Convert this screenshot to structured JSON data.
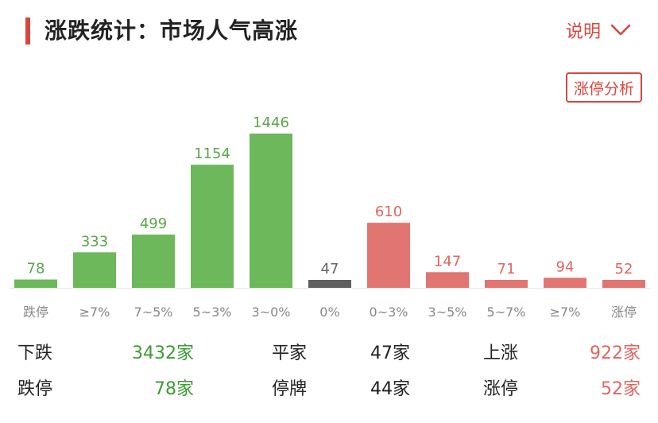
{
  "header": {
    "title": "涨跌统计：市场人气高涨",
    "explain_label": "说明",
    "explain_icon": "chevron-down-icon"
  },
  "limit_button_label": "涨停分析",
  "colors": {
    "down": "#6cb85a",
    "flat": "#5f5f5f",
    "up": "#e07572",
    "down_text": "#5aa84a",
    "flat_text": "#666666",
    "up_text": "#e0665f",
    "tick_text": "#888888"
  },
  "chart_data": {
    "type": "bar",
    "categories": [
      "跌停",
      "≥7%",
      "7~5%",
      "5~3%",
      "3~0%",
      "0%",
      "0~3%",
      "3~5%",
      "5~7%",
      "≥7%",
      "涨停"
    ],
    "values": [
      78,
      333,
      499,
      1154,
      1446,
      47,
      610,
      147,
      71,
      94,
      52
    ],
    "value_labels": [
      "78",
      "333",
      "499",
      "1154",
      "1446",
      "47",
      "610",
      "147",
      "71",
      "94",
      "52"
    ],
    "groups": [
      "down",
      "down",
      "down",
      "down",
      "down",
      "flat",
      "up",
      "up",
      "up",
      "up",
      "up"
    ]
  },
  "stats": {
    "row1": [
      {
        "label": "下跌",
        "value": "3432家",
        "tone": "green"
      },
      {
        "label": "平家",
        "value": "47家",
        "tone": "dark"
      },
      {
        "label": "上涨",
        "value": "922家",
        "tone": "red"
      }
    ],
    "row2": [
      {
        "label": "跌停",
        "value": "78家",
        "tone": "green"
      },
      {
        "label": "停牌",
        "value": "44家",
        "tone": "dark"
      },
      {
        "label": "涨停",
        "value": "52家",
        "tone": "red"
      }
    ]
  }
}
